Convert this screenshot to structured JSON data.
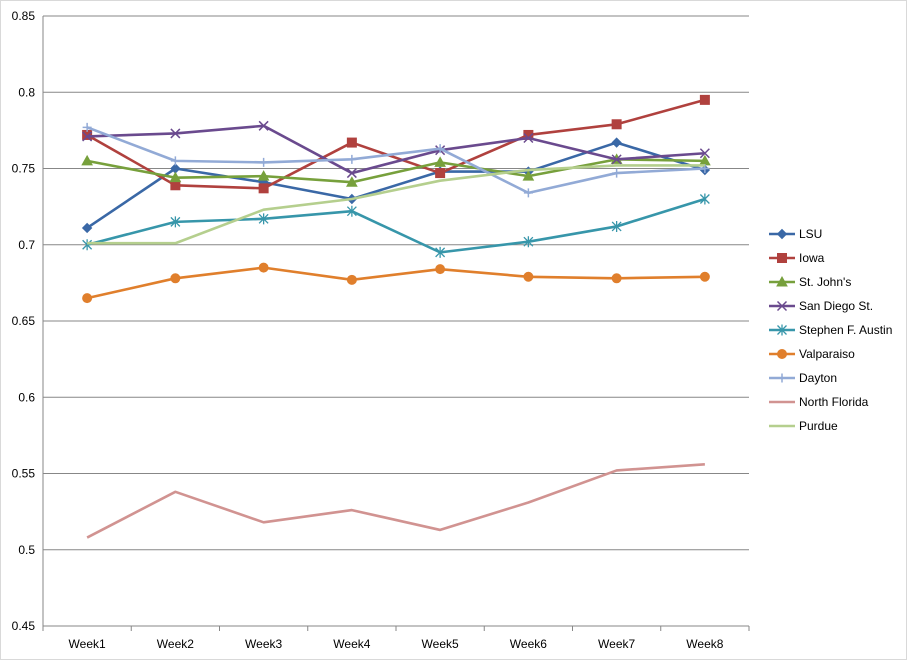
{
  "chart_data": {
    "type": "line",
    "title": "",
    "xlabel": "",
    "ylabel": "",
    "categories": [
      "Week1",
      "Week2",
      "Week3",
      "Week4",
      "Week5",
      "Week6",
      "Week7",
      "Week8"
    ],
    "ylim": [
      0.45,
      0.85
    ],
    "yticks": [
      "0.45",
      "0.5",
      "0.55",
      "0.6",
      "0.65",
      "0.7",
      "0.75",
      "0.8",
      "0.85"
    ],
    "ytick_values": [
      0.45,
      0.5,
      0.55,
      0.6,
      0.65,
      0.7,
      0.75,
      0.8,
      0.85
    ],
    "grid": true,
    "legend_position": "right",
    "series": [
      {
        "name": "LSU",
        "color": "#3a68a6",
        "marker": "diamond",
        "values": [
          0.711,
          0.75,
          0.741,
          0.73,
          0.748,
          0.748,
          0.767,
          0.749
        ]
      },
      {
        "name": "Iowa",
        "color": "#b0413e",
        "marker": "square",
        "values": [
          0.772,
          0.739,
          0.737,
          0.767,
          0.747,
          0.772,
          0.779,
          0.795
        ]
      },
      {
        "name": "St. John's",
        "color": "#77a03c",
        "marker": "triangle",
        "values": [
          0.755,
          0.744,
          0.745,
          0.741,
          0.754,
          0.745,
          0.756,
          0.755
        ]
      },
      {
        "name": "San Diego St.",
        "color": "#6a4a8e",
        "marker": "x",
        "values": [
          0.771,
          0.773,
          0.778,
          0.747,
          0.762,
          0.77,
          0.756,
          0.76
        ]
      },
      {
        "name": "Stephen F. Austin",
        "color": "#3796aa",
        "marker": "asterisk",
        "values": [
          0.7,
          0.715,
          0.717,
          0.722,
          0.695,
          0.702,
          0.712,
          0.73
        ]
      },
      {
        "name": "Valparaiso",
        "color": "#e07f2c",
        "marker": "circle",
        "values": [
          0.665,
          0.678,
          0.685,
          0.677,
          0.684,
          0.679,
          0.678,
          0.679
        ]
      },
      {
        "name": "Dayton",
        "color": "#92aad6",
        "marker": "plus",
        "values": [
          0.777,
          0.755,
          0.754,
          0.756,
          0.763,
          0.734,
          0.747,
          0.75
        ]
      },
      {
        "name": "North Florida",
        "color": "#d19391",
        "marker": "none",
        "values": [
          0.508,
          0.538,
          0.518,
          0.526,
          0.513,
          0.531,
          0.552,
          0.556
        ]
      },
      {
        "name": "Purdue",
        "color": "#b5cf8e",
        "marker": "none",
        "values": [
          0.701,
          0.701,
          0.723,
          0.73,
          0.742,
          0.749,
          0.752,
          0.752
        ]
      }
    ]
  }
}
